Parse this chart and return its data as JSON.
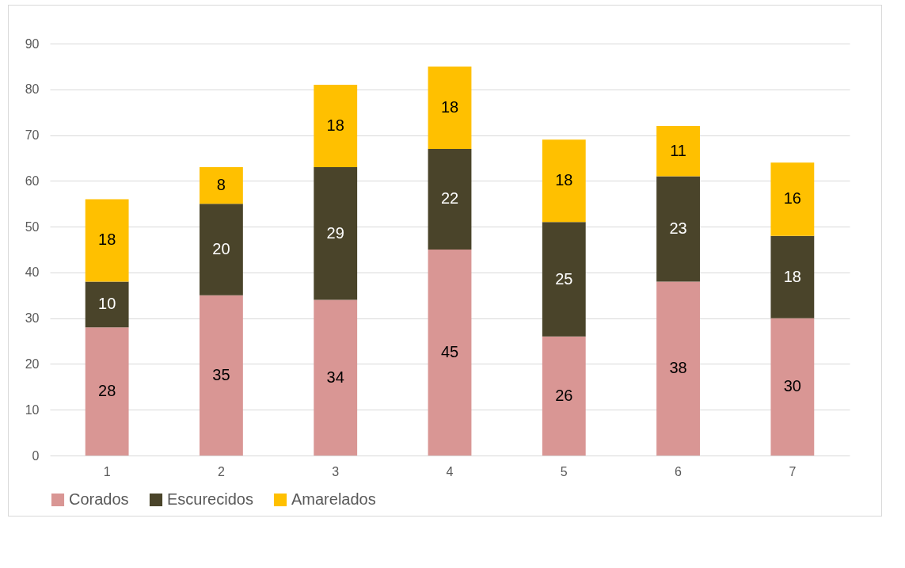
{
  "chart_data": {
    "type": "bar",
    "stacked": true,
    "categories": [
      "1",
      "2",
      "3",
      "4",
      "5",
      "6",
      "7"
    ],
    "series": [
      {
        "name": "Corados",
        "color": "#d99694",
        "values": [
          28,
          35,
          34,
          45,
          26,
          38,
          30
        ]
      },
      {
        "name": "Escurecidos",
        "color": "#4a442a",
        "values": [
          10,
          20,
          29,
          22,
          25,
          23,
          18
        ]
      },
      {
        "name": "Amarelados",
        "color": "#ffc000",
        "values": [
          18,
          8,
          18,
          18,
          18,
          11,
          16
        ]
      }
    ],
    "ylim": [
      0,
      90
    ],
    "yticks": [
      0,
      10,
      20,
      30,
      40,
      50,
      60,
      70,
      80,
      90
    ],
    "grid": "y",
    "legend": "bottom",
    "data_labels": true
  }
}
